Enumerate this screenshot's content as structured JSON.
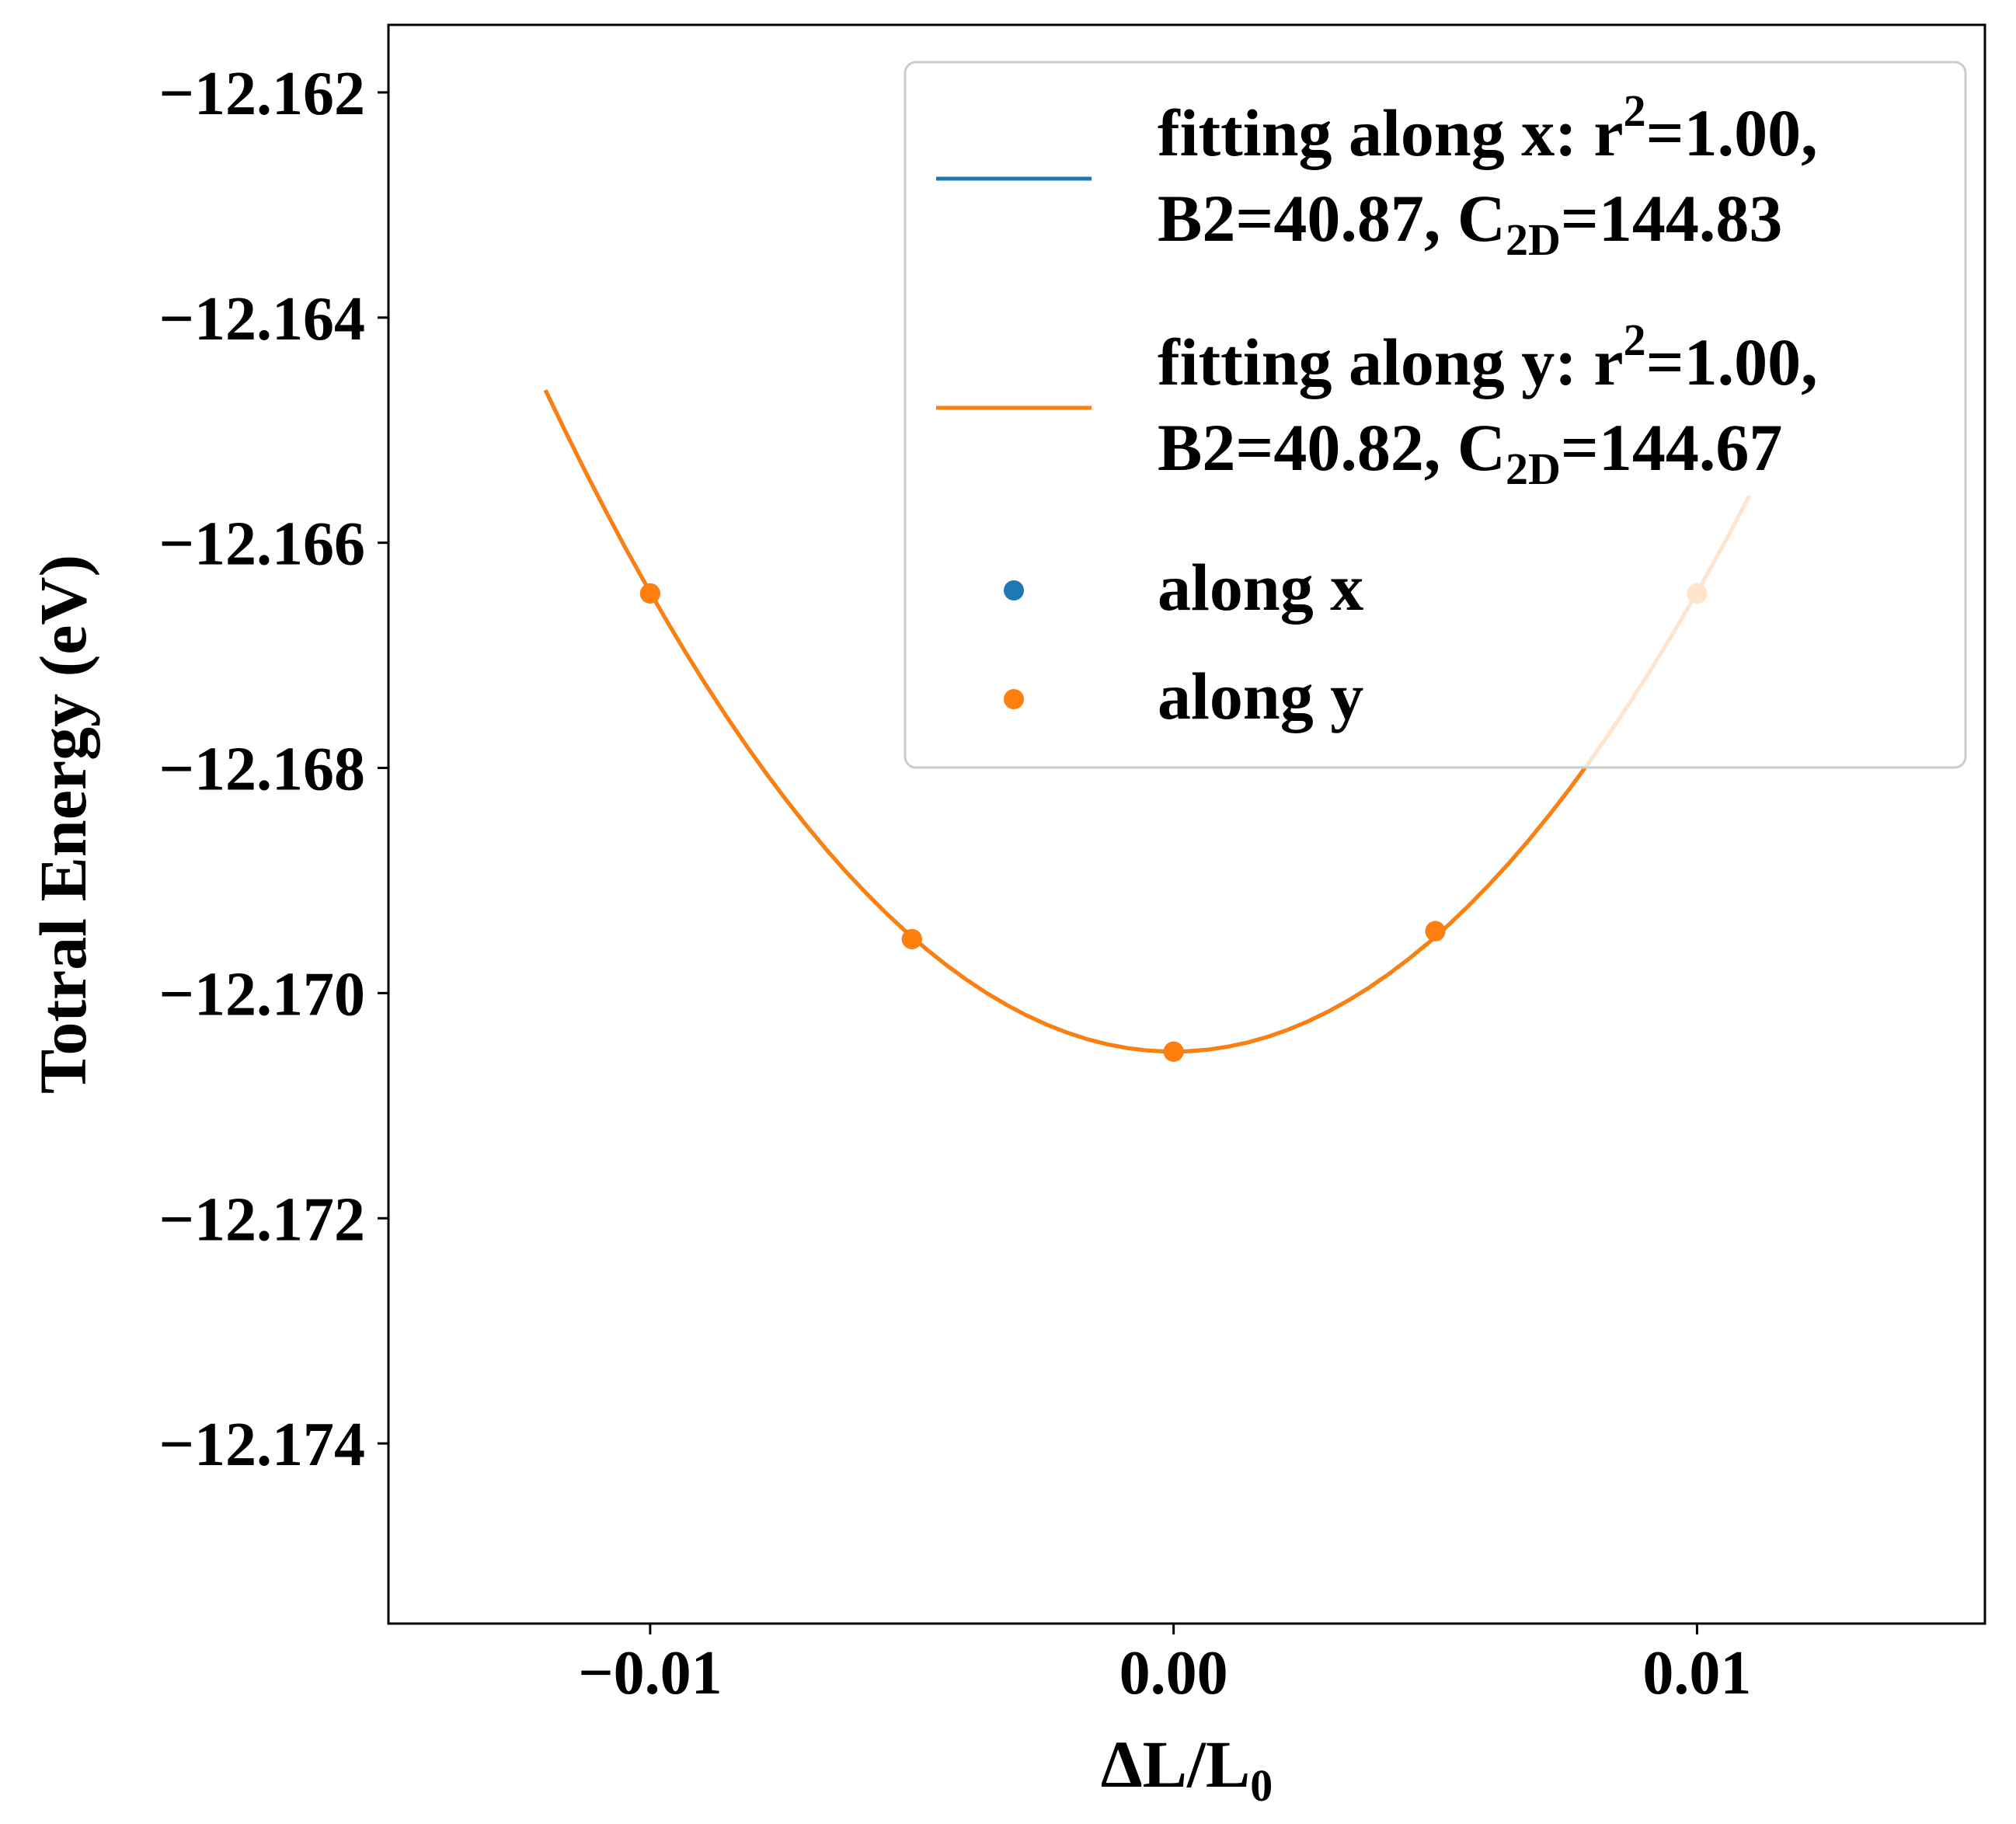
{
  "chart_data": {
    "type": "scatter",
    "xlabel_main": "ΔL/L",
    "xlabel_sub": "0",
    "ylabel": "Totral Energy (eV)",
    "xlim": [
      -0.015,
      0.0155
    ],
    "ylim": [
      -12.1756,
      -12.1614
    ],
    "xticks": [
      -0.01,
      0.0,
      0.01
    ],
    "xtick_labels": [
      "−0.01",
      "0.00",
      "0.01"
    ],
    "yticks": [
      -12.162,
      -12.164,
      -12.166,
      -12.168,
      -12.17,
      -12.172,
      -12.174
    ],
    "ytick_labels": [
      "−12.162",
      "−12.164",
      "−12.166",
      "−12.168",
      "−12.170",
      "−12.172",
      "−12.174"
    ],
    "grid": false,
    "legend_position": "top-right",
    "colors": {
      "x": "#1f77b4",
      "y": "#ff7f0e"
    },
    "fits": [
      {
        "name_lines": [
          [
            "fitting along x: r",
            "2",
            "=1.00,"
          ],
          [
            "B2=40.87, C",
            "2D",
            "=144.83"
          ]
        ],
        "color": "#1f77b4",
        "a": 40.8,
        "b": 0.0,
        "c": -12.17052,
        "x_range": [
          -0.012,
          0.011
        ]
      },
      {
        "name_lines": [
          [
            "fitting along y: r",
            "2",
            "=1.00,"
          ],
          [
            "B2=40.82, C",
            "2D",
            "=144.67"
          ]
        ],
        "color": "#ff7f0e",
        "a": 40.8,
        "b": 0.0,
        "c": -12.17052,
        "x_range": [
          -0.012,
          0.011
        ]
      }
    ],
    "series": [
      {
        "name": "along x",
        "color": "#1f77b4",
        "points": [
          [
            -0.01,
            -12.16645
          ],
          [
            -0.005,
            -12.16952
          ],
          [
            0.0,
            -12.17052
          ],
          [
            0.005,
            -12.16945
          ],
          [
            0.01,
            -12.16645
          ]
        ]
      },
      {
        "name": "along y",
        "color": "#ff7f0e",
        "points": [
          [
            -0.01,
            -12.16645
          ],
          [
            -0.005,
            -12.16952
          ],
          [
            0.0,
            -12.17052
          ],
          [
            0.005,
            -12.16945
          ],
          [
            0.01,
            -12.16645
          ]
        ]
      }
    ]
  }
}
